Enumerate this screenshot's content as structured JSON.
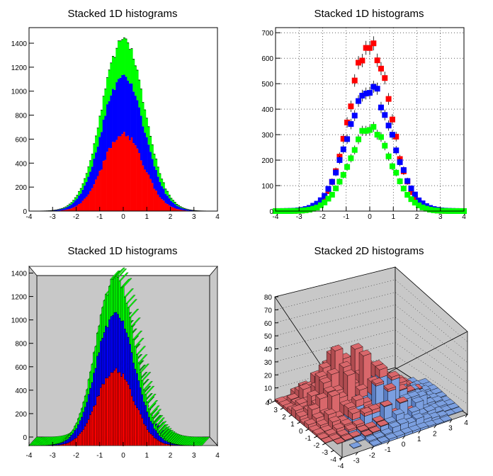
{
  "chart_data": [
    {
      "type": "bar",
      "stacked": true,
      "title": "Stacked 1D histograms",
      "xlabel": "",
      "ylabel": "",
      "xlim": [
        -4,
        4
      ],
      "ylim": [
        0,
        1530
      ],
      "grid": false,
      "x_ticks": [
        -4,
        -3,
        -2,
        -1,
        0,
        1,
        2,
        3,
        4
      ],
      "y_ticks": [
        0,
        200,
        400,
        600,
        800,
        1000,
        1200,
        1400
      ],
      "bin_width": 0.08,
      "series": [
        {
          "color": "#ff0000",
          "shape": {
            "peak": 650,
            "mean": 0.0,
            "sigma": 0.85
          }
        },
        {
          "color": "#0000ff",
          "shape": {
            "peak": 490,
            "mean": 0.0,
            "sigma": 0.95
          }
        },
        {
          "color": "#00ff00",
          "shape": {
            "peak": 310,
            "mean": 0.0,
            "sigma": 0.9
          }
        }
      ]
    },
    {
      "type": "scatter",
      "title": "Stacked 1D histograms",
      "xlabel": "",
      "ylabel": "",
      "xlim": [
        -4,
        4
      ],
      "ylim": [
        0,
        720
      ],
      "grid": true,
      "x_ticks": [
        -4,
        -3,
        -2,
        -1,
        0,
        1,
        2,
        3,
        4
      ],
      "y_ticks": [
        0,
        100,
        200,
        300,
        400,
        500,
        600,
        700
      ],
      "bin_width": 0.16,
      "series": [
        {
          "color": "#ff0000",
          "shape": {
            "peak": 665,
            "mean": 0.0,
            "sigma": 0.85
          }
        },
        {
          "color": "#0000ff",
          "shape": {
            "peak": 485,
            "mean": 0.0,
            "sigma": 0.95
          }
        },
        {
          "color": "#00ff00",
          "shape": {
            "peak": 322,
            "mean": 0.0,
            "sigma": 0.9
          }
        }
      ]
    },
    {
      "type": "bar",
      "stacked": true,
      "view": "3d",
      "title": "Stacked 1D histograms",
      "xlabel": "",
      "ylabel": "",
      "xlim": [
        -4,
        4
      ],
      "ylim": [
        0,
        1530
      ],
      "grid": false,
      "x_ticks": [
        -4,
        -3,
        -2,
        -1,
        0,
        1,
        2,
        3,
        4
      ],
      "y_ticks": [
        0,
        200,
        400,
        600,
        800,
        1000,
        1200,
        1400
      ],
      "bin_width": 0.08,
      "frame_color": "#c8c8c8"
    },
    {
      "type": "bar",
      "stacked": true,
      "view": "lego-3d",
      "title": "Stacked 2D histograms",
      "xlabel": "",
      "ylabel": "",
      "xlim": [
        -4,
        4
      ],
      "ylim": [
        -4,
        4
      ],
      "zlim": [
        0,
        80
      ],
      "grid": true,
      "x_ticks": [
        -4,
        -3,
        -2,
        -1,
        0,
        1,
        2,
        3,
        4
      ],
      "y_ticks": [
        -4,
        -3,
        -2,
        -1,
        0,
        1,
        2,
        3,
        4
      ],
      "z_ticks": [
        0,
        10,
        20,
        30,
        40,
        50,
        60,
        70,
        80
      ],
      "frame_color": "#c8c8c8",
      "series": [
        {
          "color": "#7b9fe0"
        },
        {
          "color": "#d9676b"
        }
      ]
    }
  ]
}
